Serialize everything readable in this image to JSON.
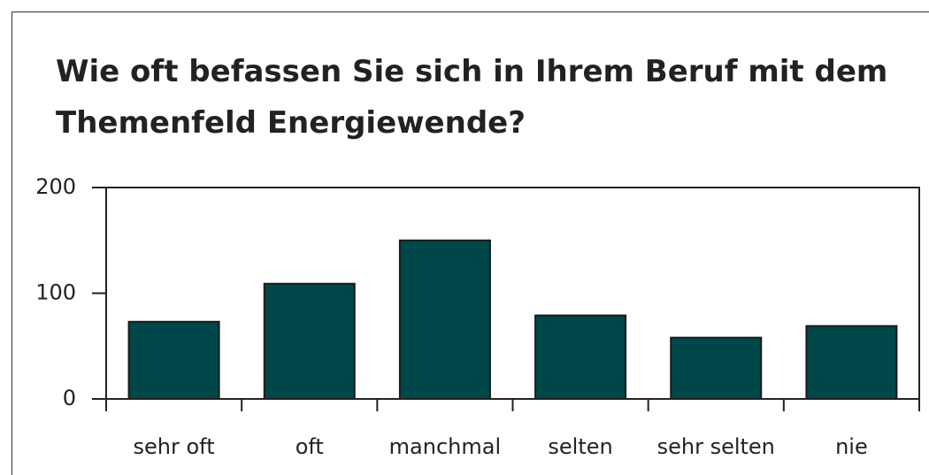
{
  "chart_data": {
    "type": "bar",
    "title": [
      "Wie oft befassen Sie sich in Ihrem Beruf mit dem",
      "Themenfeld Energiewende?"
    ],
    "categories": [
      "sehr oft",
      "oft",
      "manchmal",
      "selten",
      "sehr selten",
      "nie"
    ],
    "values": [
      73,
      109,
      150,
      79,
      58,
      69
    ],
    "color": "#00474a",
    "ylim": [
      0,
      200
    ],
    "yticks": [
      0,
      100,
      200
    ],
    "grid": false
  }
}
